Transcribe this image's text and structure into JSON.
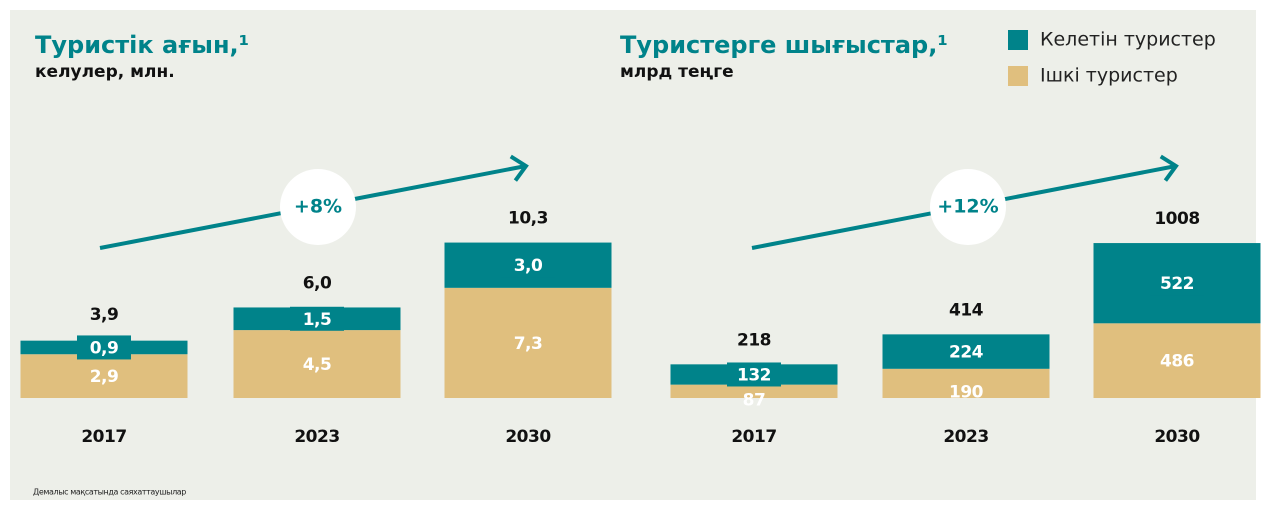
{
  "legend_items": [
    {
      "name": "Келетін туристер",
      "color": "#00838a"
    },
    {
      "name": "Ішкі туристер",
      "color": "#e0bf7e"
    }
  ],
  "footnote": "Демалыс мақсатында саяхаттаушылар",
  "chart_data": [
    {
      "type": "stacked_bar",
      "title": "Туристік ағын,¹",
      "subtitle": "келулер, млн.",
      "annotation": "+8%",
      "categories": [
        "2017",
        "2023",
        "2030"
      ],
      "series": [
        {
          "values": [
            0.9,
            1.5,
            3.0
          ],
          "value_labels": [
            "0,9",
            "1,5",
            "3,0"
          ]
        },
        {
          "values": [
            2.9,
            4.5,
            7.3
          ],
          "value_labels": [
            "2,9",
            "4,5",
            "7,3"
          ]
        }
      ],
      "totals": [
        3.9,
        6.0,
        10.3
      ],
      "total_labels": [
        "3,9",
        "6,0",
        "10,3"
      ],
      "ylim": [
        0,
        11
      ]
    },
    {
      "type": "stacked_bar",
      "title": "Туристерге шығыстар,¹",
      "subtitle": "млрд теңге",
      "annotation": "+12%",
      "categories": [
        "2017",
        "2023",
        "2030"
      ],
      "series": [
        {
          "values": [
            132,
            224,
            522
          ]
        },
        {
          "values": [
            87,
            190,
            486
          ]
        }
      ],
      "totals": [
        218,
        414,
        1008
      ],
      "ylim": [
        0,
        1080
      ]
    }
  ]
}
